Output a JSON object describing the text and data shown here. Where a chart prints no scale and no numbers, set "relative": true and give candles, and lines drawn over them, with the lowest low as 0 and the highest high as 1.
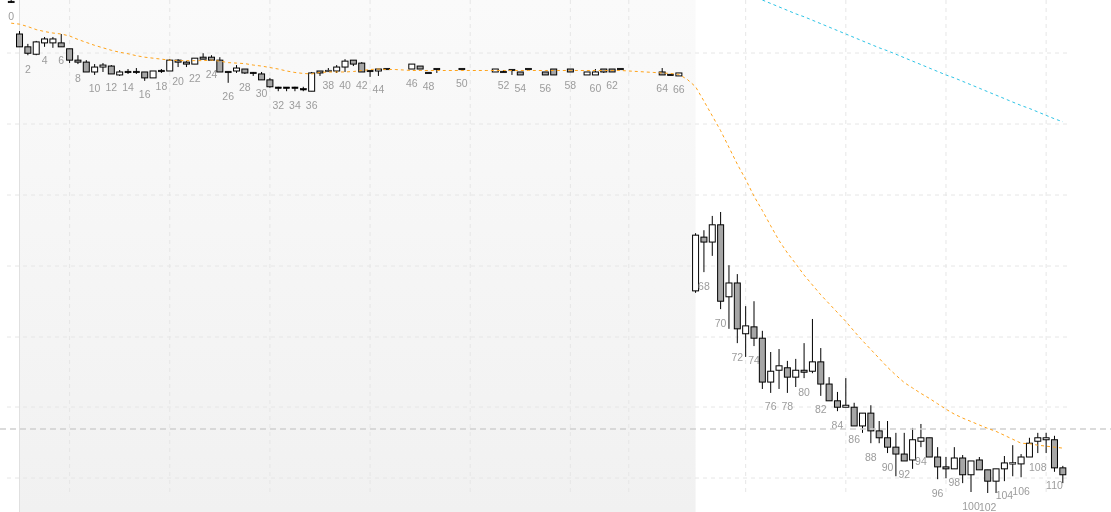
{
  "chart_data": {
    "type": "candlestick",
    "relative": true,
    "grid": true,
    "color": "#000000",
    "categories": [
      "0",
      null,
      "2",
      null,
      "4",
      null,
      "6",
      null,
      "8",
      null,
      "10",
      null,
      "12",
      null,
      "14",
      null,
      "16",
      null,
      "18",
      null,
      "20",
      null,
      "22",
      null,
      "24",
      null,
      "26",
      null,
      "28",
      null,
      "30",
      null,
      "32",
      null,
      "34",
      null,
      "36",
      null,
      "38",
      null,
      "40",
      null,
      "42",
      null,
      "44",
      null,
      null,
      null,
      "46",
      null,
      "48",
      null,
      null,
      null,
      "50",
      null,
      null,
      null,
      null,
      "52",
      null,
      "54",
      null,
      null,
      "56",
      null,
      null,
      "58",
      null,
      null,
      "60",
      null,
      "62",
      null,
      null,
      null,
      null,
      null,
      "64",
      null,
      "66",
      null,
      null,
      "68",
      null,
      "70",
      null,
      "72",
      null,
      "74",
      null,
      "76",
      null,
      "78",
      null,
      "80",
      null,
      "82",
      null,
      "84",
      null,
      "86",
      null,
      "88",
      null,
      "90",
      null,
      "92",
      null,
      "94",
      null,
      "96",
      null,
      "98",
      null,
      "100",
      null,
      "102",
      null,
      "104",
      null,
      "106",
      null,
      "108",
      null,
      "110",
      null
    ],
    "ohlc": [
      [
        0.996,
        1,
        0.994,
        0.996
      ],
      [
        0.931,
        0.937,
        0.905,
        0.905
      ],
      [
        0.905,
        0.911,
        0.888,
        0.892
      ],
      [
        0.89,
        0.917,
        0.888,
        0.915
      ],
      [
        0.913,
        0.925,
        0.905,
        0.921
      ],
      [
        0.913,
        0.925,
        0.903,
        0.921
      ],
      [
        0.913,
        0.931,
        0.905,
        0.905
      ],
      [
        0.901,
        0.901,
        0.872,
        0.878
      ],
      [
        0.878,
        0.888,
        0.87,
        0.874
      ],
      [
        0.874,
        0.878,
        0.854,
        0.854
      ],
      [
        0.854,
        0.87,
        0.848,
        0.864
      ],
      [
        0.864,
        0.872,
        0.854,
        0.868
      ],
      [
        0.866,
        0.868,
        0.85,
        0.85
      ],
      [
        0.848,
        0.858,
        0.846,
        0.854
      ],
      [
        0.854,
        0.86,
        0.85,
        0.854
      ],
      [
        0.854,
        0.862,
        0.85,
        0.854
      ],
      [
        0.854,
        0.854,
        0.836,
        0.842
      ],
      [
        0.842,
        0.856,
        0.842,
        0.856
      ],
      [
        0.856,
        0.86,
        0.852,
        0.856
      ],
      [
        0.856,
        0.88,
        0.856,
        0.878
      ],
      [
        0.878,
        0.88,
        0.864,
        0.874
      ],
      [
        0.874,
        0.876,
        0.864,
        0.87
      ],
      [
        0.87,
        0.882,
        0.87,
        0.882
      ],
      [
        0.884,
        0.892,
        0.88,
        0.88
      ],
      [
        0.884,
        0.888,
        0.878,
        0.878
      ],
      [
        0.878,
        0.884,
        0.854,
        0.854
      ],
      [
        0.854,
        0.854,
        0.832,
        0.854
      ],
      [
        0.856,
        0.868,
        0.852,
        0.862
      ],
      [
        0.86,
        0.86,
        0.85,
        0.852
      ],
      [
        0.852,
        0.854,
        0.846,
        0.852
      ],
      [
        0.85,
        0.854,
        0.838,
        0.838
      ],
      [
        0.838,
        0.842,
        0.822,
        0.824
      ],
      [
        0.822,
        0.824,
        0.815,
        0.822
      ],
      [
        0.822,
        0.822,
        0.815,
        0.822
      ],
      [
        0.822,
        0.824,
        0.815,
        0.822
      ],
      [
        0.819,
        0.824,
        0.815,
        0.819
      ],
      [
        0.815,
        0.854,
        0.815,
        0.852
      ],
      [
        0.856,
        0.856,
        0.846,
        0.852
      ],
      [
        0.857,
        0.862,
        0.854,
        0.855
      ],
      [
        0.856,
        0.868,
        0.852,
        0.864
      ],
      [
        0.864,
        0.88,
        0.854,
        0.876
      ],
      [
        0.878,
        0.878,
        0.866,
        0.87
      ],
      [
        0.872,
        0.874,
        0.854,
        0.854
      ],
      [
        0.856,
        0.856,
        0.844,
        0.856
      ],
      [
        0.856,
        0.86,
        0.846,
        0.86
      ],
      [
        0.86,
        0.86,
        0.86,
        0.86
      ],
      null,
      null,
      [
        0.86,
        0.87,
        0.86,
        0.87
      ],
      [
        0.866,
        0.866,
        0.86,
        0.86
      ],
      [
        0.852,
        0.852,
        0.852,
        0.852
      ],
      [
        0.86,
        0.86,
        0.852,
        0.86
      ],
      null,
      null,
      [
        0.86,
        0.86,
        0.86,
        0.86
      ],
      null,
      null,
      null,
      [
        0.854,
        0.86,
        0.854,
        0.86
      ],
      [
        0.854,
        0.858,
        0.854,
        0.854
      ],
      [
        0.858,
        0.858,
        0.848,
        0.858
      ],
      [
        0.854,
        0.854,
        0.848,
        0.848
      ],
      [
        0.86,
        0.86,
        0.86,
        0.86
      ],
      null,
      [
        0.854,
        0.854,
        0.848,
        0.848
      ],
      [
        0.86,
        0.86,
        0.848,
        0.848
      ],
      null,
      [
        0.86,
        0.86,
        0.854,
        0.854
      ],
      null,
      [
        0.848,
        0.854,
        0.848,
        0.854
      ],
      [
        0.848,
        0.86,
        0.848,
        0.854
      ],
      [
        0.86,
        0.86,
        0.852,
        0.854
      ],
      [
        0.86,
        0.86,
        0.854,
        0.854
      ],
      [
        0.86,
        0.86,
        0.86,
        0.86
      ],
      null,
      null,
      null,
      null,
      [
        0.854,
        0.862,
        0.848,
        0.848
      ],
      [
        0.848,
        0.848,
        0.848,
        0.848
      ],
      [
        0.846,
        0.852,
        0.846,
        0.852
      ],
      null,
      [
        0.41,
        0.527,
        0.406,
        0.523
      ],
      [
        0.519,
        0.533,
        0.448,
        0.509
      ],
      [
        0.509,
        0.562,
        0.481,
        0.544
      ],
      [
        0.544,
        0.57,
        0.373,
        0.389
      ],
      [
        0.398,
        0.462,
        0.333,
        0.426
      ],
      [
        0.426,
        0.444,
        0.304,
        0.333
      ],
      [
        0.323,
        0.379,
        0.276,
        0.339
      ],
      [
        0.337,
        0.389,
        0.298,
        0.314
      ],
      [
        0.314,
        0.329,
        0.211,
        0.225
      ],
      [
        0.225,
        0.286,
        0.203,
        0.247
      ],
      [
        0.249,
        0.292,
        0.211,
        0.258
      ],
      [
        0.254,
        0.268,
        0.203,
        0.235
      ],
      [
        0.235,
        0.272,
        0.215,
        0.249
      ],
      [
        0.249,
        0.304,
        0.233,
        0.245
      ],
      [
        0.247,
        0.353,
        0.243,
        0.266
      ],
      [
        0.266,
        0.294,
        0.197,
        0.221
      ],
      [
        0.221,
        0.235,
        0.187,
        0.187
      ],
      [
        0.187,
        0.205,
        0.166,
        0.174
      ],
      [
        0.174,
        0.233,
        0.174,
        0.178
      ],
      [
        0.174,
        0.183,
        0.136,
        0.136
      ],
      [
        0.136,
        0.162,
        0.122,
        0.162
      ],
      [
        0.162,
        0.178,
        0.101,
        0.126
      ],
      [
        0.126,
        0.146,
        0.101,
        0.112
      ],
      [
        0.112,
        0.146,
        0.081,
        0.093
      ],
      [
        0.093,
        0.122,
        0.034,
        0.079
      ],
      [
        0.079,
        0.122,
        0.065,
        0.065
      ],
      [
        0.067,
        0.132,
        0.049,
        0.108
      ],
      [
        0.105,
        0.14,
        0.093,
        0.112
      ],
      [
        0.112,
        0.112,
        0.073,
        0.073
      ],
      [
        0.073,
        0.093,
        0.028,
        0.053
      ],
      [
        0.053,
        0.073,
        0.03,
        0.049
      ],
      [
        0.049,
        0.093,
        0.049,
        0.071
      ],
      [
        0.071,
        0.077,
        0.02,
        0.037
      ],
      [
        0.037,
        0.065,
        0.002,
        0.065
      ],
      [
        0.067,
        0.073,
        0.047,
        0.047
      ],
      [
        0.047,
        0.047,
        0,
        0.024
      ],
      [
        0.024,
        0.049,
        0,
        0.049
      ],
      [
        0.049,
        0.075,
        0.024,
        0.061
      ],
      [
        0.061,
        0.097,
        0.034,
        0.059
      ],
      [
        0.059,
        0.079,
        0.032,
        0.073
      ],
      [
        0.073,
        0.112,
        0.073,
        0.101
      ],
      [
        0.105,
        0.122,
        0.081,
        0.112
      ],
      [
        0.108,
        0.122,
        0.081,
        0.112
      ],
      [
        0.108,
        0.116,
        0.043,
        0.051
      ],
      [
        0.051,
        0.055,
        0.02,
        0.037
      ]
    ],
    "colors": [
      "#000000",
      "#a6a6a6",
      "#a6a6a6",
      "#ffffff",
      "#ffffff",
      "#ffffff",
      "#a6a6a6",
      "#a6a6a6",
      "#a6a6a6",
      "#a6a6a6",
      "#ffffff",
      "#ffffff",
      "#a6a6a6",
      "#ffffff",
      "#000000",
      "#000000",
      "#a6a6a6",
      "#ffffff",
      "#000000",
      "#ffffff",
      "#a6a6a6",
      "#a6a6a6",
      "#ffffff",
      "#a6a6a6",
      "#a6a6a6",
      "#a6a6a6",
      "#000000",
      "#ffffff",
      "#a6a6a6",
      "#000000",
      "#a6a6a6",
      "#a6a6a6",
      "#000000",
      "#000000",
      "#000000",
      "#000000",
      "#ffffff",
      "#a6a6a6",
      "#a6a6a6",
      "#ffffff",
      "#ffffff",
      "#a6a6a6",
      "#a6a6a6",
      "#000000",
      "#ffffff",
      "#000000",
      null,
      null,
      "#ffffff",
      "#a6a6a6",
      "#000000",
      "#000000",
      null,
      null,
      "#000000",
      null,
      null,
      null,
      "#ffffff",
      "#000000",
      "#000000",
      "#a6a6a6",
      "#000000",
      null,
      "#a6a6a6",
      "#a6a6a6",
      null,
      "#a6a6a6",
      null,
      "#ffffff",
      "#ffffff",
      "#a6a6a6",
      "#a6a6a6",
      "#000000",
      null,
      null,
      null,
      null,
      "#a6a6a6",
      "#000000",
      "#ffffff",
      null,
      "#ffffff",
      "#a6a6a6",
      "#ffffff",
      "#a6a6a6",
      "#ffffff",
      "#a6a6a6",
      "#ffffff",
      "#a6a6a6",
      "#a6a6a6",
      "#ffffff",
      "#ffffff",
      "#a6a6a6",
      "#ffffff",
      "#a6a6a6",
      "#ffffff",
      "#a6a6a6",
      "#a6a6a6",
      "#a6a6a6",
      "#ffffff",
      "#a6a6a6",
      "#ffffff",
      "#a6a6a6",
      "#a6a6a6",
      "#a6a6a6",
      "#a6a6a6",
      "#a6a6a6",
      "#ffffff",
      "#ffffff",
      "#a6a6a6",
      "#a6a6a6",
      "#a6a6a6",
      "#ffffff",
      "#a6a6a6",
      "#ffffff",
      "#a6a6a6",
      "#a6a6a6",
      "#ffffff",
      "#ffffff",
      "#a6a6a6",
      "#ffffff",
      "#ffffff",
      "#ffffff",
      "#ffffff",
      "#a6a6a6",
      "#a6a6a6"
    ],
    "series": [
      {
        "type": "line",
        "color": "#ffa31a",
        "line_style": "dashed",
        "values": [
          0.953,
          0.951,
          0.946,
          0.94,
          0.936,
          0.933,
          0.931,
          0.927,
          0.92,
          0.914,
          0.908,
          0.903,
          0.898,
          0.894,
          0.891,
          0.887,
          0.884,
          0.882,
          0.88,
          0.878,
          0.877,
          0.877,
          0.877,
          0.877,
          0.878,
          0.876,
          0.873,
          0.872,
          0.871,
          0.868,
          0.866,
          0.863,
          0.86,
          0.856,
          0.853,
          0.851,
          0.85,
          0.853,
          0.854,
          0.854,
          0.854,
          0.855,
          0.857,
          0.859,
          0.86,
          0.859,
          0.859,
          0.858,
          0.857,
          0.857,
          0.857,
          0.857,
          0.857,
          0.857,
          0.857,
          0.857,
          0.857,
          0.857,
          0.857,
          0.857,
          0.857,
          0.857,
          0.857,
          0.857,
          0.857,
          0.857,
          0.857,
          0.857,
          0.857,
          0.857,
          0.857,
          0.857,
          0.857,
          0.857,
          0.856,
          0.855,
          0.854,
          0.853,
          0.852,
          0.851,
          0.849,
          0.839,
          0.824,
          0.795,
          0.765,
          0.735,
          0.701,
          0.667,
          0.636,
          0.602,
          0.573,
          0.542,
          0.512,
          0.487,
          0.465,
          0.442,
          0.422,
          0.402,
          0.384,
          0.366,
          0.348,
          0.328,
          0.309,
          0.291,
          0.273,
          0.255,
          0.239,
          0.224,
          0.213,
          0.202,
          0.192,
          0.181,
          0.17,
          0.16,
          0.152,
          0.145,
          0.138,
          0.131,
          0.125,
          0.117,
          0.109,
          0.101,
          0.1,
          0.097,
          0.095,
          0.093,
          0.091
        ]
      },
      {
        "type": "line",
        "color": "#2ec4e6",
        "line_style": "dashed",
        "values": [
          null,
          null,
          null,
          null,
          null,
          null,
          null,
          null,
          null,
          null,
          null,
          null,
          null,
          null,
          null,
          null,
          null,
          null,
          null,
          null,
          null,
          null,
          null,
          null,
          null,
          null,
          null,
          null,
          null,
          null,
          null,
          null,
          null,
          null,
          null,
          null,
          null,
          null,
          null,
          null,
          null,
          null,
          null,
          null,
          null,
          null,
          null,
          null,
          null,
          null,
          null,
          null,
          null,
          null,
          null,
          null,
          null,
          null,
          null,
          null,
          null,
          null,
          null,
          null,
          null,
          null,
          null,
          null,
          null,
          null,
          null,
          null,
          null,
          null,
          null,
          null,
          null,
          null,
          null,
          null,
          null,
          null,
          null,
          null,
          null,
          null,
          null,
          null,
          null,
          null,
          1,
          0.993,
          0.986,
          0.979,
          0.972,
          0.966,
          0.959,
          0.952,
          0.945,
          0.938,
          0.931,
          0.924,
          0.917,
          0.91,
          0.903,
          0.897,
          0.89,
          0.883,
          0.876,
          0.869,
          0.862,
          0.855,
          0.848,
          0.842,
          0.835,
          0.828,
          0.821,
          0.814,
          0.807,
          0.8,
          0.793,
          0.786,
          0.78,
          0.773,
          0.766,
          0.759,
          0.753
        ]
      }
    ],
    "ref_lines": [
      {
        "axis": "y",
        "value": 0.13,
        "color": "#cfcfcf",
        "line_style": "dashed"
      }
    ]
  }
}
